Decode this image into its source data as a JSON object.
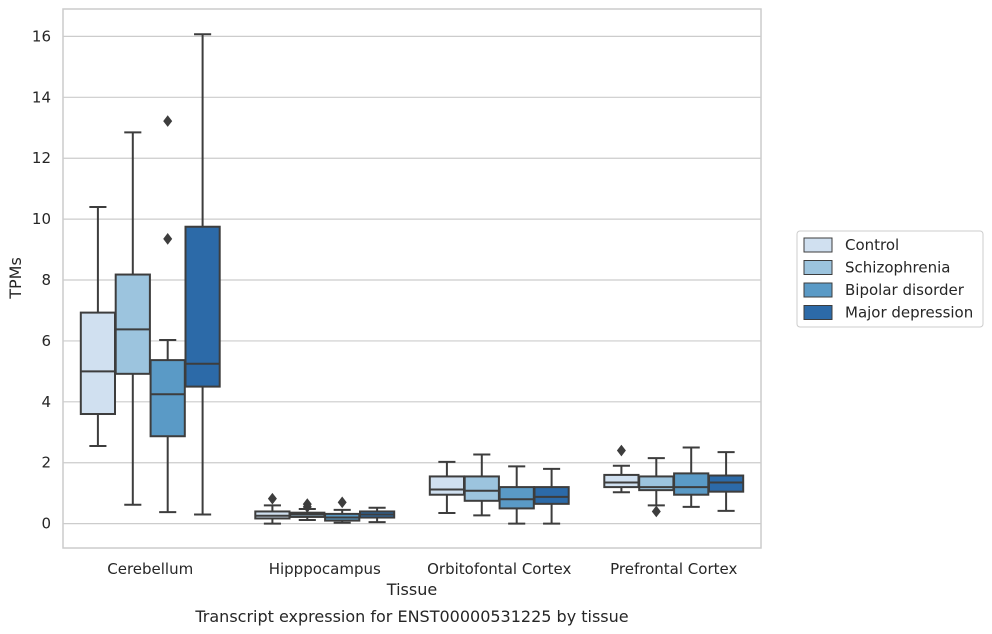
{
  "chart_data": {
    "type": "box",
    "title": "",
    "caption": "Transcript expression for ENST00000531225 by tissue",
    "xlabel": "Tissue",
    "ylabel": "TPMs",
    "ylim": [
      -0.8,
      16.9
    ],
    "yticks": [
      0,
      2,
      4,
      6,
      8,
      10,
      12,
      14,
      16
    ],
    "grid": "horizontal",
    "legend_position": "right",
    "categories": [
      "Cerebellum",
      "Hipppocampus",
      "Orbitofontal Cortex",
      "Prefrontal Cortex"
    ],
    "series": [
      {
        "name": "Control",
        "color": "#d0e0f0",
        "boxes": [
          {
            "whislo": 2.55,
            "q1": 3.6,
            "med": 5.0,
            "q3": 6.93,
            "whishi": 10.4,
            "fliers": []
          },
          {
            "whislo": 0.0,
            "q1": 0.17,
            "med": 0.26,
            "q3": 0.4,
            "whishi": 0.6,
            "fliers": [
              0.82
            ]
          },
          {
            "whislo": 0.35,
            "q1": 0.95,
            "med": 1.12,
            "q3": 1.55,
            "whishi": 2.03,
            "fliers": []
          },
          {
            "whislo": 1.03,
            "q1": 1.2,
            "med": 1.35,
            "q3": 1.6,
            "whishi": 1.9,
            "fliers": [
              2.4
            ]
          }
        ]
      },
      {
        "name": "Schizophrenia",
        "color": "#9cc4de",
        "boxes": [
          {
            "whislo": 0.62,
            "q1": 4.92,
            "med": 6.38,
            "q3": 8.18,
            "whishi": 12.85,
            "fliers": []
          },
          {
            "whislo": 0.12,
            "q1": 0.22,
            "med": 0.3,
            "q3": 0.36,
            "whishi": 0.48,
            "fliers": [
              0.55,
              0.64
            ]
          },
          {
            "whislo": 0.27,
            "q1": 0.75,
            "med": 1.08,
            "q3": 1.55,
            "whishi": 2.27,
            "fliers": []
          },
          {
            "whislo": 0.6,
            "q1": 1.1,
            "med": 1.2,
            "q3": 1.55,
            "whishi": 2.15,
            "fliers": [
              0.4
            ]
          }
        ]
      },
      {
        "name": "Bipolar disorder",
        "color": "#5a9ac6",
        "boxes": [
          {
            "whislo": 0.38,
            "q1": 2.87,
            "med": 4.25,
            "q3": 5.37,
            "whishi": 6.03,
            "fliers": [
              9.35,
              13.22
            ]
          },
          {
            "whislo": 0.03,
            "q1": 0.1,
            "med": 0.2,
            "q3": 0.32,
            "whishi": 0.45,
            "fliers": [
              0.7
            ]
          },
          {
            "whislo": 0.0,
            "q1": 0.5,
            "med": 0.8,
            "q3": 1.2,
            "whishi": 1.88,
            "fliers": []
          },
          {
            "whislo": 0.55,
            "q1": 0.95,
            "med": 1.2,
            "q3": 1.65,
            "whishi": 2.5,
            "fliers": []
          }
        ]
      },
      {
        "name": "Major depression",
        "color": "#2c6aa8",
        "boxes": [
          {
            "whislo": 0.3,
            "q1": 4.5,
            "med": 5.25,
            "q3": 9.75,
            "whishi": 16.07,
            "fliers": []
          },
          {
            "whislo": 0.05,
            "q1": 0.2,
            "med": 0.3,
            "q3": 0.4,
            "whishi": 0.52,
            "fliers": []
          },
          {
            "whislo": 0.0,
            "q1": 0.65,
            "med": 0.88,
            "q3": 1.2,
            "whishi": 1.8,
            "fliers": []
          },
          {
            "whislo": 0.42,
            "q1": 1.05,
            "med": 1.35,
            "q3": 1.58,
            "whishi": 2.35,
            "fliers": []
          }
        ]
      }
    ]
  }
}
